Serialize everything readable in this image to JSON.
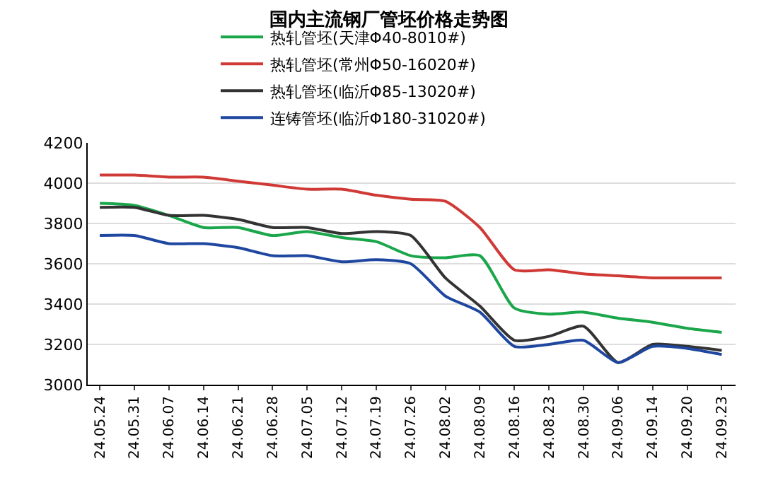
{
  "chart_data": {
    "type": "line",
    "title": "国内主流钢厂管坯价格走势图",
    "categories": [
      "24.05.24",
      "24.05.31",
      "24.06.07",
      "24.06.14",
      "24.06.21",
      "24.06.28",
      "24.07.05",
      "24.07.12",
      "24.07.19",
      "24.07.26",
      "24.08.02",
      "24.08.09",
      "24.08.16",
      "24.08.23",
      "24.08.30",
      "24.09.06",
      "24.09.14",
      "24.09.20",
      "24.09.23"
    ],
    "series": [
      {
        "name": "热轧管坯(天津Φ40-8010#)",
        "color": "#1aa64a",
        "values": [
          3900,
          3890,
          3840,
          3780,
          3780,
          3740,
          3760,
          3730,
          3710,
          3640,
          3630,
          3640,
          3380,
          3350,
          3360,
          3330,
          3310,
          3280,
          3260
        ]
      },
      {
        "name": "热轧管坯(常州Φ50-16020#)",
        "color": "#d03a36",
        "values": [
          4040,
          4040,
          4030,
          4030,
          4010,
          3990,
          3970,
          3970,
          3940,
          3920,
          3910,
          3780,
          3570,
          3570,
          3550,
          3540,
          3530,
          3530,
          3530
        ]
      },
      {
        "name": "热轧管坯(临沂Φ85-13020#)",
        "color": "#333333",
        "values": [
          3880,
          3880,
          3840,
          3840,
          3820,
          3780,
          3780,
          3750,
          3760,
          3740,
          3530,
          3390,
          3220,
          3240,
          3290,
          3110,
          3200,
          3190,
          3170
        ]
      },
      {
        "name": "连铸管坯(临沂Φ180-31020#)",
        "color": "#1f47a0",
        "values": [
          3740,
          3740,
          3700,
          3700,
          3680,
          3640,
          3640,
          3610,
          3620,
          3600,
          3440,
          3360,
          3190,
          3200,
          3220,
          3110,
          3190,
          3180,
          3150
        ]
      }
    ],
    "ylim": [
      3000,
      4200
    ],
    "yticks": [
      3000,
      3200,
      3400,
      3600,
      3800,
      4000,
      4200
    ],
    "grid": "y",
    "legend": "top",
    "marker": "none",
    "line_style": "solid"
  }
}
